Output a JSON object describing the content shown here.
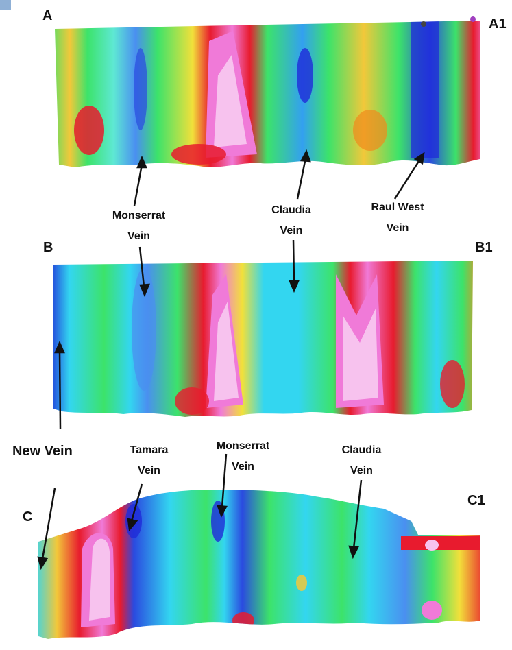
{
  "sections": {
    "A": {
      "start": "A",
      "end": "A1"
    },
    "B": {
      "start": "B",
      "end": "B1"
    },
    "C": {
      "start": "C",
      "end": "C1"
    }
  },
  "veins": {
    "monserrat_ab": {
      "line1": "Monserrat",
      "line2": "Vein"
    },
    "claudia_ab": {
      "line1": "Claudia",
      "line2": "Vein"
    },
    "raul_west": {
      "line1": "Raul West",
      "line2": "Vein"
    },
    "new_vein": {
      "line1": "New Vein"
    },
    "tamara": {
      "line1": "Tamara",
      "line2": "Vein"
    },
    "monserrat_c": {
      "line1": "Monserrat",
      "line2": "Vein"
    },
    "claudia_c": {
      "line1": "Claudia",
      "line2": "Vein"
    }
  },
  "colors": {
    "low": "#1f2bd8",
    "cyan": "#33d6f0",
    "mid": "#3ce36a",
    "yellow": "#f2e03a",
    "orange": "#f08a1c",
    "high": "#e81b2e",
    "peak": "#f07ad8",
    "max": "#f7c2ee"
  }
}
